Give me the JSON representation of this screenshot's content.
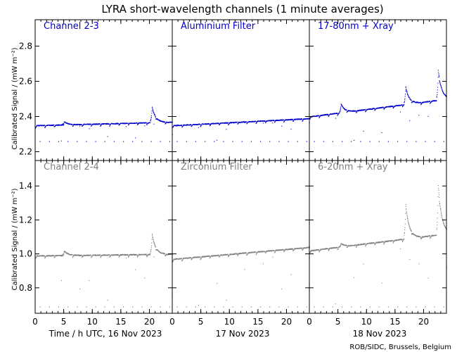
{
  "title": "LYRA short-wavelength channels (1 minute averages)",
  "ylabel": "Calibrated Signal / (mW m⁻²)",
  "credit": "ROB/SIDC, Brussels, Belgium",
  "day_labels": [
    "Time / h UTC, 16 Nov 2023",
    "17 Nov 2023",
    "18 Nov 2023"
  ],
  "hour_ticks": [
    0,
    5,
    10,
    15,
    20
  ],
  "colors": {
    "top": "#0000cc",
    "bottom": "#808080",
    "axis": "#000000"
  },
  "chart_data": [
    {
      "type": "scatter",
      "row": "top",
      "ylim": [
        2.15,
        2.95
      ],
      "yticks": [
        "2.2",
        "2.4",
        "2.6",
        "2.8"
      ],
      "panels": [
        {
          "label": "Channel 2-3",
          "day": "16 Nov 2023",
          "baseline_start": 2.35,
          "baseline_end": 2.37,
          "dip_min": 2.26,
          "flares": [
            {
              "hour": 5.0,
              "peak": 2.39
            },
            {
              "hour": 20.4,
              "peak": 2.46
            }
          ]
        },
        {
          "label": "Aluminium Filter",
          "day": "17 Nov 2023",
          "baseline_start": 2.35,
          "baseline_end": 2.39,
          "dip_min": 2.26,
          "flares": []
        },
        {
          "label": "17-80nm + Xray",
          "day": "18 Nov 2023",
          "baseline_start": 2.4,
          "baseline_end": 2.5,
          "dip_min": 2.26,
          "flares": [
            {
              "hour": 5.5,
              "peak": 2.55
            },
            {
              "hour": 16.8,
              "peak": 2.6
            },
            {
              "hour": 22.5,
              "peak": 2.67
            }
          ]
        }
      ]
    },
    {
      "type": "scatter",
      "row": "bottom",
      "ylim": [
        0.65,
        1.55
      ],
      "yticks": [
        "0.8",
        "1.0",
        "1.2",
        "1.4"
      ],
      "panels": [
        {
          "label": "Channel 2-4",
          "day": "16 Nov 2023",
          "baseline_start": 0.99,
          "baseline_end": 1.0,
          "dip_min": 0.69,
          "flares": [
            {
              "hour": 5.0,
              "peak": 1.03
            },
            {
              "hour": 20.4,
              "peak": 1.12
            }
          ]
        },
        {
          "label": "Zirconium Filter",
          "day": "17 Nov 2023",
          "baseline_start": 0.97,
          "baseline_end": 1.04,
          "dip_min": 0.69,
          "flares": []
        },
        {
          "label": "6-20nm + Xray",
          "day": "18 Nov 2023",
          "baseline_start": 1.02,
          "baseline_end": 1.12,
          "dip_min": 0.69,
          "flares": [
            {
              "hour": 5.5,
              "peak": 1.14
            },
            {
              "hour": 16.8,
              "peak": 1.32
            },
            {
              "hour": 22.5,
              "peak": 1.41
            }
          ]
        }
      ]
    }
  ]
}
